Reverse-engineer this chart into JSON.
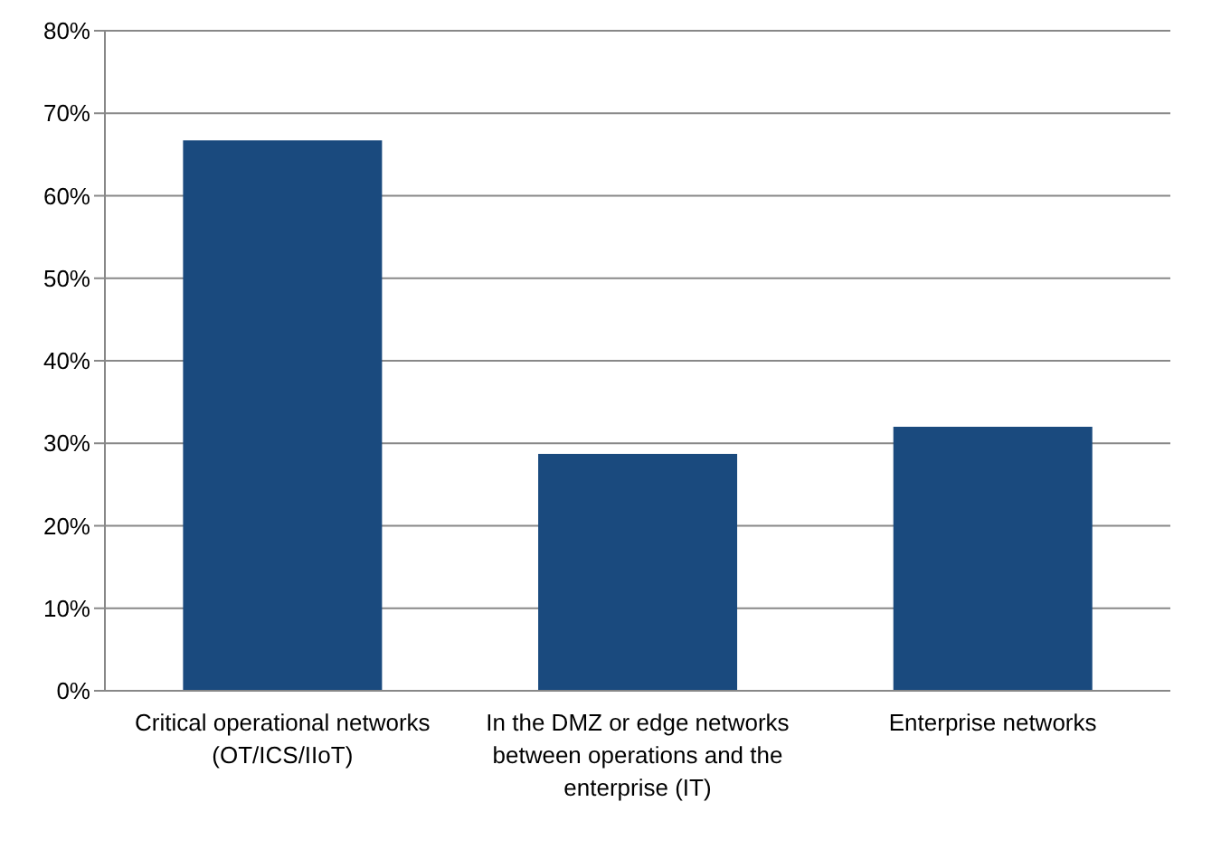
{
  "chart_data": {
    "type": "bar",
    "categories": [
      "Critical operational networks (OT/ICS/IIoT)",
      "In the DMZ or edge networks between operations and the enterprise (IT)",
      "Enterprise networks"
    ],
    "values": [
      0.667,
      0.287,
      0.32
    ],
    "color": "#1a4a7e",
    "ylim": [
      0,
      0.8
    ],
    "yticks": [
      {
        "value": 0,
        "label": "0%"
      },
      {
        "value": 0.1,
        "label": "10%"
      },
      {
        "value": 0.2,
        "label": "20%"
      },
      {
        "value": 0.3,
        "label": "30%"
      },
      {
        "value": 0.4,
        "label": "40%"
      },
      {
        "value": 0.5,
        "label": "50%"
      },
      {
        "value": 0.6,
        "label": "60%"
      },
      {
        "value": 0.7,
        "label": "70%"
      },
      {
        "value": 0.8,
        "label": "80%"
      }
    ],
    "grid": "y"
  }
}
